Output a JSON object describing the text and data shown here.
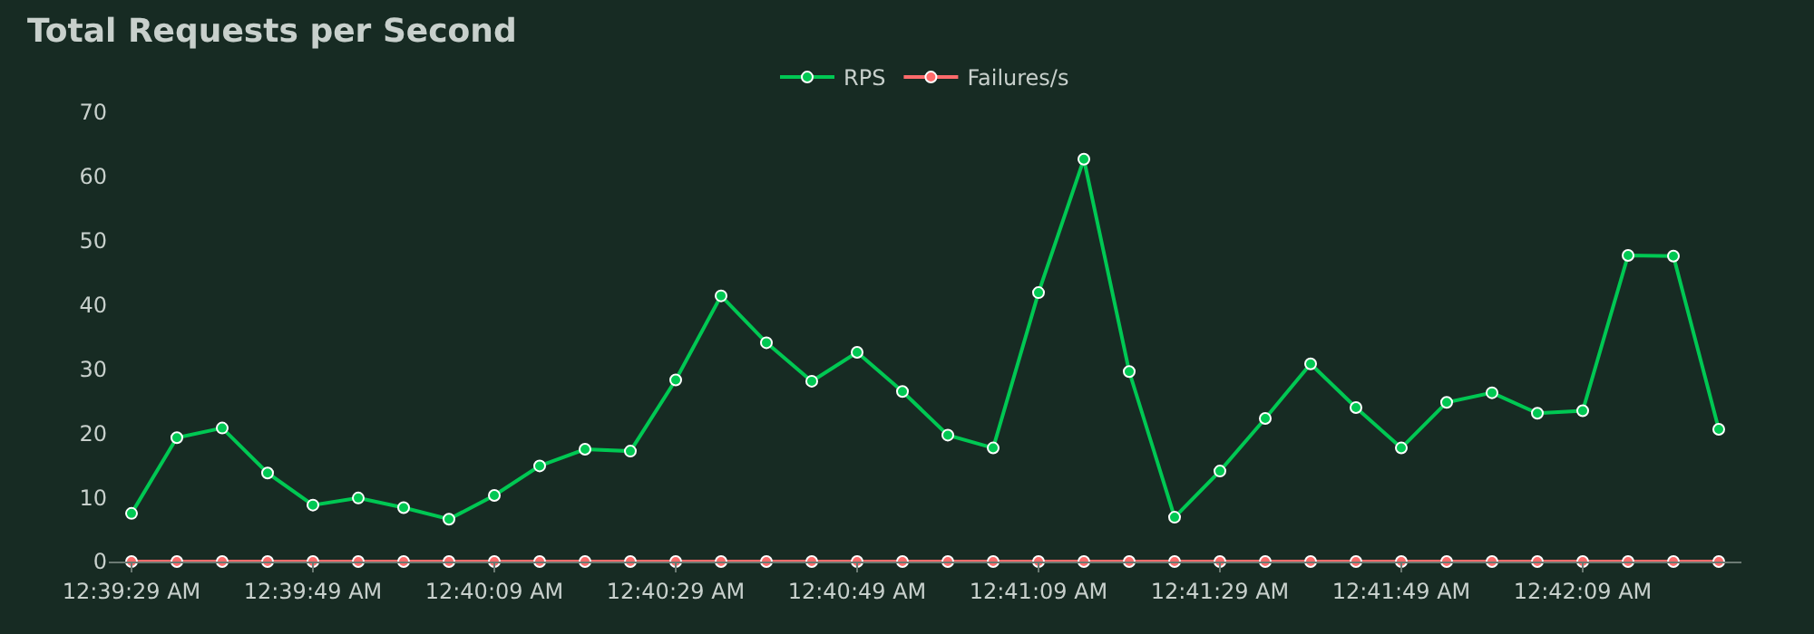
{
  "chart_data": {
    "type": "line",
    "title": "Total Requests per Second",
    "categories": [
      "12:39:29 AM",
      null,
      null,
      null,
      "12:39:49 AM",
      null,
      null,
      null,
      "12:40:09 AM",
      null,
      null,
      null,
      "12:40:29 AM",
      null,
      null,
      null,
      "12:40:49 AM",
      null,
      null,
      null,
      "12:41:09 AM",
      null,
      null,
      null,
      "12:41:29 AM",
      null,
      null,
      null,
      "12:41:49 AM",
      null,
      null,
      null,
      "12:42:09 AM",
      null,
      null,
      null
    ],
    "series": [
      {
        "name": "RPS",
        "color": "#00c853",
        "values": [
          7.5,
          19.3,
          20.8,
          13.8,
          8.8,
          9.9,
          8.4,
          6.6,
          10.3,
          14.9,
          17.5,
          17.2,
          28.3,
          41.4,
          34.1,
          28.1,
          32.6,
          26.5,
          19.7,
          17.7,
          41.9,
          62.7,
          29.6,
          6.9,
          14.1,
          22.3,
          30.8,
          24.0,
          17.7,
          24.8,
          26.3,
          23.1,
          23.5,
          47.7,
          47.6,
          20.6
        ]
      },
      {
        "name": "Failures/s",
        "color": "#ff6b6b",
        "values": [
          0,
          0,
          0,
          0,
          0,
          0,
          0,
          0,
          0,
          0,
          0,
          0,
          0,
          0,
          0,
          0,
          0,
          0,
          0,
          0,
          0,
          0,
          0,
          0,
          0,
          0,
          0,
          0,
          0,
          0,
          0,
          0,
          0,
          0,
          0,
          0
        ]
      }
    ],
    "ylim": [
      0,
      70
    ],
    "yticks": [
      0,
      10,
      20,
      30,
      40,
      50,
      60,
      70
    ],
    "grid": false,
    "legend": "top",
    "marker": "circle",
    "line_style": "solid"
  }
}
